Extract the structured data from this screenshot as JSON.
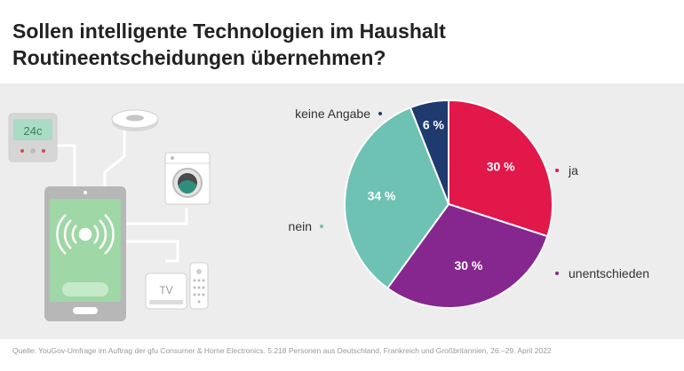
{
  "title_line1": "Sollen intelligente Technologien im Haushalt",
  "title_line2": "Routineentscheidungen übernehmen?",
  "source": "Quelle: YouGov-Umfrage im Auftrag der gfu Consumer & Home Electronics. 5.218 Personen aus Deutschland, Frankreich und Großbritannien, 26.–29. April 2022",
  "illustration": {
    "thermostat_display": "24c",
    "tv_label": "TV",
    "icons": [
      "smartphone-icon",
      "broadcast-waves-icon",
      "thermostat-icon",
      "robot-vacuum-icon",
      "washing-machine-icon",
      "tv-box-icon",
      "remote-control-icon"
    ]
  },
  "chart_data": {
    "type": "pie",
    "title": "",
    "slices": [
      {
        "label": "ja",
        "value": 30,
        "value_label": "30 %",
        "color": "#e2174a"
      },
      {
        "label": "unentschieden",
        "value": 30,
        "value_label": "30 %",
        "color": "#86278f"
      },
      {
        "label": "nein",
        "value": 34,
        "value_label": "34 %",
        "color": "#6dc2b3"
      },
      {
        "label": "keine Angabe",
        "value": 6,
        "value_label": "6 %",
        "color": "#1e3a6e"
      }
    ]
  }
}
